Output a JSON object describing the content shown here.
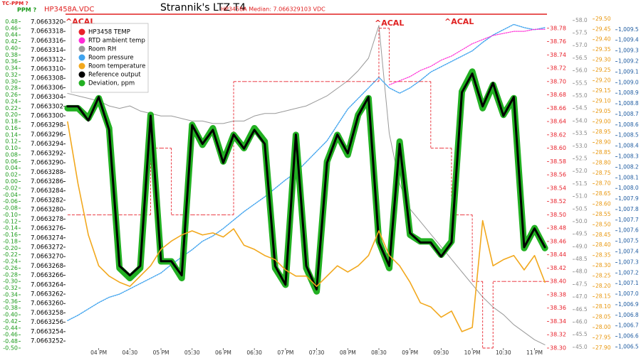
{
  "chart_data": {
    "type": "line",
    "title": "Strannik's LTZ T4",
    "annotations": [
      {
        "text": "TC-PPM ?",
        "color": "#e02020"
      },
      {
        "text": "PPM ?",
        "color": "#1a9a1a"
      },
      {
        "text": "HP3458A.VDC",
        "color": "#e02020"
      },
      {
        "text": "HP3458A Median: 7.066329103 VDC",
        "color": "#e02020"
      },
      {
        "text": "^ACAL",
        "color": "#e02020"
      },
      {
        "text": "^ACAL",
        "color": "#e02020"
      },
      {
        "text": "^ACAL",
        "color": "#e02020"
      }
    ],
    "x": [
      930,
      940,
      950,
      960,
      970,
      980,
      990,
      1000,
      1010,
      1020,
      1030,
      1040,
      1050,
      1060,
      1070,
      1080,
      1090,
      1100,
      1110,
      1120,
      1130,
      1140,
      1150,
      1160,
      1170,
      1180,
      1190,
      1200,
      1210,
      1220,
      1230,
      1240,
      1250,
      1260,
      1270,
      1280,
      1290,
      1300,
      1310,
      1320,
      1330,
      1340,
      1350,
      1360,
      1370,
      1380,
      1390
    ],
    "xlim": [
      928,
      1392
    ],
    "xticks": [
      {
        "value": 960,
        "label": "04 PM"
      },
      {
        "value": 990,
        "label": "04:30"
      },
      {
        "value": 1020,
        "label": "05 PM"
      },
      {
        "value": 1050,
        "label": "05:30"
      },
      {
        "value": 1080,
        "label": "06 PM"
      },
      {
        "value": 1110,
        "label": "06:30"
      },
      {
        "value": 1140,
        "label": "07 PM"
      },
      {
        "value": 1170,
        "label": "07:30"
      },
      {
        "value": 1200,
        "label": "08 PM"
      },
      {
        "value": 1230,
        "label": "08:30"
      },
      {
        "value": 1260,
        "label": "09 PM"
      },
      {
        "value": 1290,
        "label": "09:30"
      },
      {
        "value": 1320,
        "label": "10 PM"
      },
      {
        "value": 1350,
        "label": "10:30"
      },
      {
        "value": 1380,
        "label": "11 PM"
      }
    ],
    "y_axes": [
      {
        "color": "#1a9a1a",
        "ylim": [
          -0.5,
          0.5
        ],
        "yticks": [
          {
            "value": -0.5,
            "label": "-0.50"
          },
          -0.48,
          -0.46,
          -0.44,
          -0.42,
          {
            "value": -0.4,
            "label": "-0.40"
          },
          -0.38,
          -0.36,
          -0.34,
          -0.32,
          {
            "value": -0.3,
            "label": "-0.30"
          },
          -0.28,
          -0.26,
          -0.24,
          -0.22,
          {
            "value": -0.2,
            "label": "-0.20"
          },
          -0.18,
          -0.16,
          -0.14,
          -0.12,
          {
            "value": -0.1,
            "label": "-0.10"
          },
          -0.08,
          -0.06,
          -0.04,
          -0.02,
          {
            "value": 0,
            "label": "0.00"
          },
          0.02,
          0.04,
          0.06,
          0.08,
          {
            "value": 0.1,
            "label": "0.10"
          },
          0.12,
          0.14,
          0.16,
          0.18,
          {
            "value": 0.2,
            "label": "0.20"
          },
          0.22,
          0.24,
          0.26,
          0.28,
          {
            "value": 0.3,
            "label": "0.30"
          },
          0.32,
          0.34,
          0.36,
          0.38,
          {
            "value": 0.4,
            "label": "0.40"
          },
          0.42,
          0.44,
          0.46,
          0.48
        ]
      },
      {
        "color": "#000000",
        "ylim": [
          7.06632505,
          7.06633215
        ],
        "yticks": [
          7.0663252,
          7.0663254,
          7.0663256,
          7.0663258,
          {
            "value": 7.066326,
            "label": "7.0663260"
          },
          7.0663262,
          7.0663264,
          7.0663266,
          7.0663268,
          {
            "value": 7.066327,
            "label": "7.0663270"
          },
          7.0663272,
          7.0663274,
          7.0663276,
          7.0663278,
          {
            "value": 7.066328,
            "label": "7.0663280"
          },
          7.0663282,
          7.0663284,
          7.0663286,
          7.0663288,
          {
            "value": 7.066329,
            "label": "7.0663290"
          },
          7.0663292,
          7.0663294,
          7.0663296,
          7.0663298,
          {
            "value": 7.06633,
            "label": "7.0663300"
          },
          7.0663302,
          7.0663304,
          7.0663306,
          7.0663308,
          {
            "value": 7.066331,
            "label": "7.0663310"
          },
          7.0663312,
          7.0663314,
          7.0663316,
          7.0663318,
          {
            "value": 7.066332,
            "label": "7.0663320"
          }
        ]
      },
      {
        "color": "#e8212b",
        "ylim": [
          38.3,
          38.8
        ],
        "yticks": [
          {
            "value": 38.3,
            "label": "38.30"
          },
          38.32,
          38.34,
          38.36,
          38.38,
          {
            "value": 38.4,
            "label": "38.40"
          },
          38.42,
          38.44,
          38.46,
          38.48,
          {
            "value": 38.5,
            "label": "38.50"
          },
          38.52,
          38.54,
          38.56,
          38.58,
          {
            "value": 38.6,
            "label": "38.60"
          },
          38.62,
          38.64,
          38.66,
          38.68,
          {
            "value": 38.7,
            "label": "38.70"
          },
          38.72,
          38.74,
          38.76,
          38.78
        ]
      },
      {
        "color": "#8a8a8a",
        "ylim": [
          44.97,
          58.22
        ],
        "yticks": [
          {
            "value": 45,
            "label": "45.0"
          },
          45.5,
          {
            "value": 46,
            "label": "46.0"
          },
          46.5,
          {
            "value": 47,
            "label": "47.0"
          },
          47.5,
          {
            "value": 48,
            "label": "48.0"
          },
          48.5,
          {
            "value": 49,
            "label": "49.0"
          },
          49.5,
          {
            "value": 50,
            "label": "50.0"
          },
          50.5,
          {
            "value": 51,
            "label": "51.0"
          },
          51.5,
          {
            "value": 52,
            "label": "52.0"
          },
          52.5,
          {
            "value": 53,
            "label": "53.0"
          },
          53.5,
          {
            "value": 54,
            "label": "54.0"
          },
          54.5,
          {
            "value": 55,
            "label": "55.0"
          },
          55.5,
          {
            "value": 56,
            "label": "56.0"
          },
          56.5,
          {
            "value": 57,
            "label": "57.0"
          },
          57.5,
          {
            "value": 58,
            "label": "58.0"
          }
        ]
      },
      {
        "color": "#e8960c",
        "ylim": [
          27.9,
          29.52
        ],
        "yticks": [
          {
            "value": 27.9,
            "label": "27.90"
          },
          27.95,
          {
            "value": 28,
            "label": "28.00"
          },
          28.05,
          {
            "value": 28.1,
            "label": "28.10"
          },
          28.15,
          {
            "value": 28.2,
            "label": "28.20"
          },
          28.25,
          {
            "value": 28.3,
            "label": "28.30"
          },
          28.35,
          {
            "value": 28.4,
            "label": "28.40"
          },
          28.45,
          {
            "value": 28.5,
            "label": "28.50"
          },
          28.55,
          {
            "value": 28.6,
            "label": "28.60"
          },
          28.65,
          {
            "value": 28.7,
            "label": "28.70"
          },
          28.75,
          {
            "value": 28.8,
            "label": "28.80"
          },
          28.85,
          {
            "value": 28.9,
            "label": "28.90"
          },
          28.95,
          {
            "value": 29,
            "label": "29.00"
          },
          29.05,
          {
            "value": 29.1,
            "label": "29.10"
          },
          29.15,
          {
            "value": 29.2,
            "label": "29.20"
          },
          29.25,
          {
            "value": 29.3,
            "label": "29.30"
          },
          29.35,
          {
            "value": 29.4,
            "label": "29.40"
          },
          29.45,
          {
            "value": 29.5,
            "label": "29.50"
          }
        ]
      },
      {
        "color": "#1c5aa0",
        "ylim": [
          1006.49,
          1009.64
        ],
        "yticks": [
          {
            "value": 1006.5,
            "label": "1,006.5"
          },
          {
            "value": 1006.6,
            "label": "1,006.6"
          },
          {
            "value": 1006.7,
            "label": "1,006.7"
          },
          {
            "value": 1006.8,
            "label": "1,006.8"
          },
          {
            "value": 1006.9,
            "label": "1,006.9"
          },
          {
            "value": 1007,
            "label": "1,007.0"
          },
          {
            "value": 1007.1,
            "label": "1,007.1"
          },
          {
            "value": 1007.2,
            "label": "1,007.2"
          },
          {
            "value": 1007.3,
            "label": "1,007.3"
          },
          {
            "value": 1007.4,
            "label": "1,007.4"
          },
          {
            "value": 1007.5,
            "label": "1,007.5"
          },
          {
            "value": 1007.6,
            "label": "1,007.6"
          },
          {
            "value": 1007.7,
            "label": "1,007.7"
          },
          {
            "value": 1007.8,
            "label": "1,007.8"
          },
          {
            "value": 1007.9,
            "label": "1,007.9"
          },
          {
            "value": 1008,
            "label": "1,008.0"
          },
          {
            "value": 1008.1,
            "label": "1,008.1"
          },
          {
            "value": 1008.2,
            "label": "1,008.2"
          },
          {
            "value": 1008.3,
            "label": "1,008.3"
          },
          {
            "value": 1008.4,
            "label": "1,008.4"
          },
          {
            "value": 1008.5,
            "label": "1,008.5"
          },
          {
            "value": 1008.6,
            "label": "1,008.6"
          },
          {
            "value": 1008.7,
            "label": "1,008.7"
          },
          {
            "value": 1008.8,
            "label": "1,008.8"
          },
          {
            "value": 1008.9,
            "label": "1,008.9"
          },
          {
            "value": 1009,
            "label": "1,009.0"
          },
          {
            "value": 1009.1,
            "label": "1,009.1"
          },
          {
            "value": 1009.2,
            "label": "1,009.2"
          },
          {
            "value": 1009.3,
            "label": "1,009.3"
          },
          {
            "value": 1009.4,
            "label": "1,009.4"
          },
          {
            "value": 1009.5,
            "label": "1,009.5"
          }
        ]
      }
    ],
    "series": [
      {
        "name": "HP3458 TEMP",
        "color": "#e8212b",
        "axis": 2,
        "step": true,
        "dashed": true,
        "values": [
          38.5,
          38.5,
          38.5,
          38.5,
          38.5,
          38.5,
          38.5,
          38.5,
          38.6,
          38.6,
          38.5,
          38.5,
          38.5,
          38.5,
          38.5,
          38.5,
          38.7,
          38.7,
          38.7,
          38.7,
          38.7,
          38.7,
          38.7,
          38.7,
          38.7,
          38.7,
          38.7,
          38.7,
          38.7,
          38.7,
          38.78,
          38.7,
          38.7,
          38.7,
          38.7,
          38.6,
          38.6,
          38.5,
          38.5,
          38.4,
          38.3,
          38.4,
          38.4,
          38.4,
          38.4,
          38.4,
          38.4
        ]
      },
      {
        "name": "RTD ambient temp",
        "color": "#ff2bd6",
        "axis": 4,
        "dotted": true,
        "values": [
          null,
          null,
          null,
          null,
          null,
          null,
          null,
          null,
          null,
          null,
          null,
          null,
          null,
          null,
          null,
          null,
          null,
          null,
          null,
          null,
          null,
          null,
          null,
          null,
          null,
          null,
          null,
          null,
          null,
          null,
          null,
          29.18,
          29.2,
          29.22,
          29.25,
          29.27,
          29.3,
          29.32,
          29.35,
          29.38,
          29.4,
          29.42,
          29.43,
          29.44,
          29.44,
          29.45,
          29.45
        ]
      },
      {
        "name": "Room RH",
        "color": "#999999",
        "axis": 3,
        "values": [
          55.1,
          55.0,
          54.9,
          54.8,
          54.6,
          54.5,
          54.6,
          54.4,
          54.3,
          54.2,
          54.2,
          54.1,
          54.0,
          54.0,
          53.9,
          53.9,
          54.0,
          54.0,
          54.2,
          54.3,
          54.3,
          54.4,
          54.5,
          54.6,
          54.8,
          55.0,
          55.3,
          55.6,
          56.0,
          56.5,
          57.8,
          53.5,
          51.5,
          50.5,
          50.0,
          49.5,
          49.0,
          48.5,
          48.0,
          47.5,
          47.0,
          46.6,
          46.3,
          45.9,
          45.6,
          45.3,
          45.1
        ]
      },
      {
        "name": "Room pressure",
        "color": "#3fa3ee",
        "axis": 5,
        "dotted": true,
        "values": [
          1006.75,
          1006.8,
          1006.86,
          1006.92,
          1006.97,
          1007.0,
          1007.05,
          1007.1,
          1007.15,
          1007.2,
          1007.28,
          1007.35,
          1007.42,
          1007.5,
          1007.55,
          1007.62,
          1007.7,
          1007.78,
          1007.85,
          1007.92,
          1008.0,
          1008.08,
          1008.15,
          1008.25,
          1008.35,
          1008.45,
          1008.6,
          1008.75,
          1008.85,
          1008.95,
          1009.05,
          1008.95,
          1008.9,
          1008.95,
          1009.02,
          1009.1,
          1009.15,
          1009.2,
          1009.25,
          1009.3,
          1009.38,
          1009.45,
          1009.5,
          1009.55,
          1009.52,
          1009.5,
          1009.52
        ]
      },
      {
        "name": "Room temperature",
        "color": "#f2a81d",
        "axis": 4,
        "values": [
          29.0,
          28.7,
          28.45,
          28.3,
          28.25,
          28.22,
          28.2,
          28.25,
          28.3,
          28.38,
          28.42,
          28.45,
          28.47,
          28.45,
          28.46,
          28.44,
          28.48,
          28.4,
          28.38,
          28.35,
          28.33,
          28.28,
          28.25,
          28.25,
          28.2,
          28.25,
          28.3,
          28.27,
          28.3,
          28.35,
          28.47,
          28.35,
          28.3,
          28.22,
          28.12,
          28.1,
          28.05,
          28.08,
          27.98,
          28.0,
          28.52,
          28.3,
          28.33,
          28.35,
          28.28,
          28.35,
          28.22
        ]
      },
      {
        "name": "Reference output",
        "color": "#000000",
        "axis": 1,
        "values": [
          7.0663302,
          7.0663302,
          7.0663299,
          7.0663304,
          7.0663297,
          7.0663268,
          7.0663266,
          7.0663268,
          7.06633,
          7.0663269,
          7.0663269,
          7.0663266,
          7.0663298,
          7.0663294,
          7.0663297,
          7.066329,
          7.0663296,
          7.0663293,
          7.0663297,
          7.0663294,
          7.0663268,
          7.0663264,
          7.0663296,
          7.0663268,
          7.0663263,
          7.066329,
          7.0663296,
          7.0663292,
          7.06633,
          7.0663304,
          7.0663273,
          7.0663268,
          7.0663294,
          7.0663275,
          7.0663273,
          7.0663273,
          7.066327,
          7.0663273,
          7.0663305,
          7.0663309,
          7.0663302,
          7.0663307,
          7.06633,
          7.0663304,
          7.0663272,
          7.0663276,
          7.0663272
        ]
      },
      {
        "name": "Deviation, ppm",
        "color": "#22b022",
        "axis": 0,
        "values": [
          0.22,
          0.22,
          0.19,
          0.25,
          0.16,
          -0.26,
          -0.29,
          -0.26,
          0.2,
          -0.24,
          -0.24,
          -0.29,
          0.17,
          0.11,
          0.16,
          0.06,
          0.14,
          0.1,
          0.16,
          0.12,
          -0.26,
          -0.31,
          0.14,
          -0.26,
          -0.33,
          0.06,
          0.14,
          0.08,
          0.2,
          0.25,
          -0.18,
          -0.26,
          0.12,
          -0.16,
          -0.18,
          -0.18,
          -0.22,
          -0.18,
          0.27,
          0.33,
          0.22,
          0.29,
          0.2,
          0.25,
          -0.2,
          -0.14,
          -0.2
        ]
      }
    ]
  }
}
